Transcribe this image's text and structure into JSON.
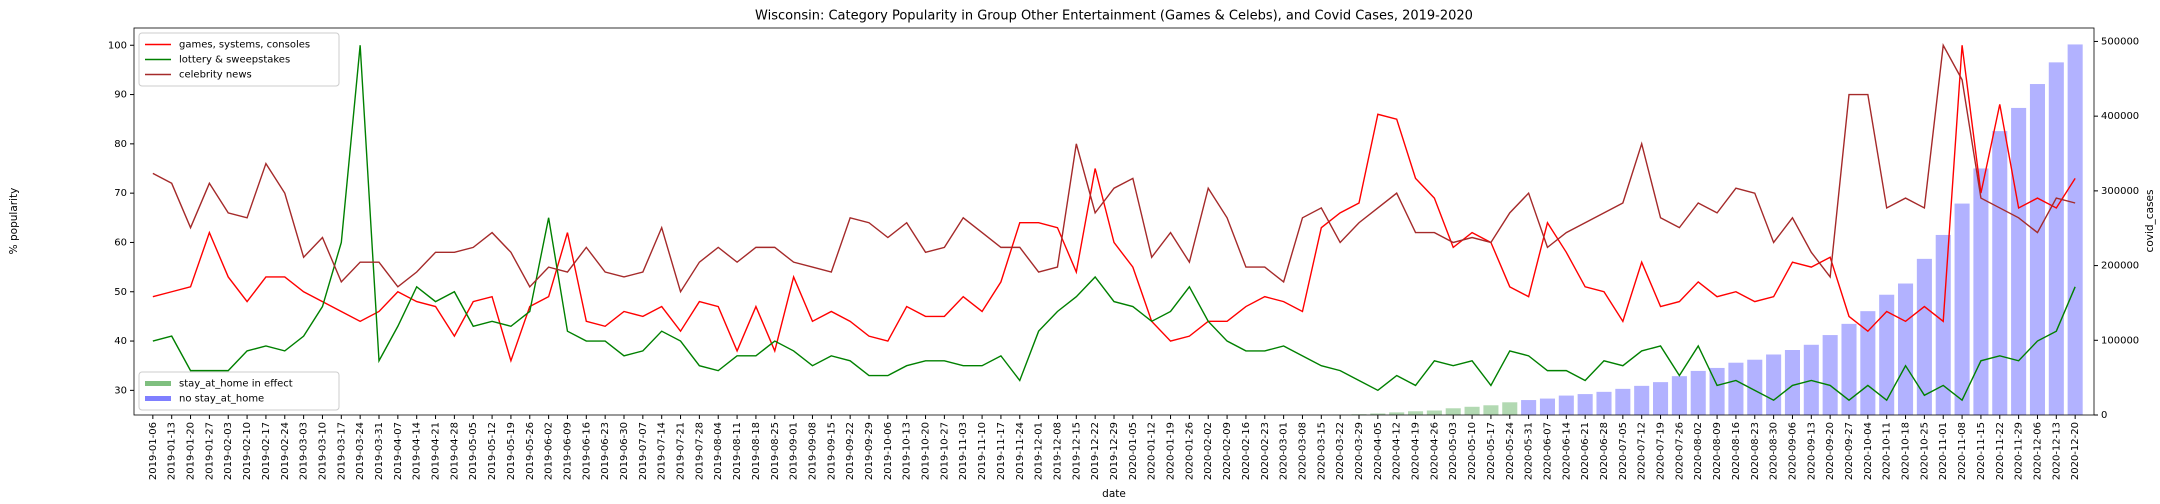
{
  "chart_data": {
    "type": "line",
    "title": "Wisconsin: Category Popularity in Group Other Entertainment (Games & Celebs), and Covid Cases, 2019-2020",
    "x_label": "date",
    "y_label": "% popularity",
    "y2_label": "covid_cases",
    "categories": [
      "2019-01-06",
      "2019-01-13",
      "2019-01-20",
      "2019-01-27",
      "2019-02-03",
      "2019-02-10",
      "2019-02-17",
      "2019-02-24",
      "2019-03-03",
      "2019-03-10",
      "2019-03-17",
      "2019-03-24",
      "2019-03-31",
      "2019-04-07",
      "2019-04-14",
      "2019-04-21",
      "2019-04-28",
      "2019-05-05",
      "2019-05-12",
      "2019-05-19",
      "2019-05-26",
      "2019-06-02",
      "2019-06-09",
      "2019-06-16",
      "2019-06-23",
      "2019-06-30",
      "2019-07-07",
      "2019-07-14",
      "2019-07-21",
      "2019-07-28",
      "2019-08-04",
      "2019-08-11",
      "2019-08-18",
      "2019-08-25",
      "2019-09-01",
      "2019-09-08",
      "2019-09-15",
      "2019-09-22",
      "2019-09-29",
      "2019-10-06",
      "2019-10-13",
      "2019-10-20",
      "2019-10-27",
      "2019-11-03",
      "2019-11-10",
      "2019-11-17",
      "2019-11-24",
      "2019-12-01",
      "2019-12-08",
      "2019-12-15",
      "2019-12-22",
      "2019-12-29",
      "2020-01-05",
      "2020-01-12",
      "2020-01-19",
      "2020-01-26",
      "2020-02-02",
      "2020-02-09",
      "2020-02-16",
      "2020-02-23",
      "2020-03-01",
      "2020-03-08",
      "2020-03-15",
      "2020-03-22",
      "2020-03-29",
      "2020-04-05",
      "2020-04-12",
      "2020-04-19",
      "2020-04-26",
      "2020-05-03",
      "2020-05-10",
      "2020-05-17",
      "2020-05-24",
      "2020-05-31",
      "2020-06-07",
      "2020-06-14",
      "2020-06-21",
      "2020-06-28",
      "2020-07-05",
      "2020-07-12",
      "2020-07-19",
      "2020-07-26",
      "2020-08-02",
      "2020-08-09",
      "2020-08-16",
      "2020-08-23",
      "2020-08-30",
      "2020-09-06",
      "2020-09-13",
      "2020-09-20",
      "2020-09-27",
      "2020-10-04",
      "2020-10-11",
      "2020-10-18",
      "2020-10-25",
      "2020-11-01",
      "2020-11-08",
      "2020-11-15",
      "2020-11-22",
      "2020-11-29",
      "2020-12-06",
      "2020-12-13",
      "2020-12-20"
    ],
    "series": [
      {
        "name": "games, systems, consoles",
        "color": "#ff0000",
        "values": [
          49,
          50,
          51,
          62,
          53,
          48,
          53,
          53,
          50,
          48,
          46,
          44,
          46,
          50,
          48,
          47,
          41,
          48,
          49,
          36,
          47,
          49,
          62,
          44,
          43,
          46,
          45,
          47,
          42,
          48,
          47,
          38,
          47,
          38,
          53,
          44,
          46,
          44,
          41,
          40,
          47,
          45,
          45,
          49,
          46,
          52,
          64,
          64,
          63,
          54,
          75,
          60,
          55,
          44,
          40,
          41,
          44,
          44,
          47,
          49,
          48,
          46,
          63,
          66,
          68,
          86,
          85,
          73,
          69,
          59,
          62,
          60,
          51,
          49,
          64,
          58,
          51,
          50,
          44,
          56,
          47,
          48,
          52,
          49,
          50,
          48,
          49,
          56,
          55,
          57,
          45,
          42,
          46,
          44,
          47,
          44,
          100,
          70,
          88,
          67,
          69,
          67,
          73
        ]
      },
      {
        "name": "lottery & sweepstakes",
        "color": "#008000",
        "values": [
          40,
          41,
          34,
          34,
          34,
          38,
          39,
          38,
          41,
          47,
          60,
          100,
          36,
          43,
          51,
          48,
          50,
          43,
          44,
          43,
          46,
          65,
          42,
          40,
          40,
          37,
          38,
          42,
          40,
          35,
          34,
          37,
          37,
          40,
          38,
          35,
          37,
          36,
          33,
          33,
          35,
          36,
          36,
          35,
          35,
          37,
          32,
          42,
          46,
          49,
          53,
          48,
          47,
          44,
          46,
          51,
          44,
          40,
          38,
          38,
          39,
          37,
          35,
          34,
          32,
          30,
          33,
          31,
          36,
          35,
          36,
          31,
          38,
          37,
          34,
          34,
          32,
          36,
          35,
          38,
          39,
          33,
          39,
          31,
          32,
          30,
          28,
          31,
          32,
          31,
          28,
          31,
          28,
          35,
          29,
          31,
          28,
          36,
          37,
          36,
          40,
          42,
          51
        ]
      },
      {
        "name": "celebrity news",
        "color": "#a52a2a",
        "values": [
          74,
          72,
          63,
          72,
          66,
          65,
          76,
          70,
          57,
          61,
          52,
          56,
          56,
          51,
          54,
          58,
          58,
          59,
          62,
          58,
          51,
          55,
          54,
          59,
          54,
          53,
          54,
          63,
          50,
          56,
          59,
          56,
          59,
          59,
          56,
          55,
          54,
          65,
          64,
          61,
          64,
          58,
          59,
          65,
          62,
          59,
          59,
          54,
          55,
          80,
          66,
          71,
          73,
          57,
          62,
          56,
          71,
          65,
          55,
          55,
          52,
          65,
          67,
          60,
          64,
          67,
          70,
          62,
          62,
          60,
          61,
          60,
          66,
          70,
          59,
          62,
          64,
          66,
          68,
          80,
          65,
          63,
          68,
          66,
          71,
          70,
          60,
          65,
          58,
          53,
          90,
          90,
          67,
          69,
          67,
          100,
          93,
          69,
          67,
          65,
          62,
          69,
          68
        ]
      },
      {
        "name": "stay_at_home in effect",
        "type": "bar",
        "axis": "y2",
        "color": "#008000",
        "values": [
          null,
          null,
          null,
          null,
          null,
          null,
          null,
          null,
          null,
          null,
          null,
          null,
          null,
          null,
          null,
          null,
          null,
          null,
          null,
          null,
          null,
          null,
          null,
          null,
          null,
          null,
          null,
          null,
          null,
          null,
          null,
          null,
          null,
          null,
          null,
          null,
          null,
          null,
          null,
          null,
          null,
          null,
          null,
          null,
          null,
          null,
          null,
          null,
          null,
          null,
          null,
          null,
          null,
          null,
          null,
          null,
          null,
          null,
          null,
          null,
          null,
          null,
          null,
          300,
          1000,
          2000,
          3500,
          5000,
          6000,
          9000,
          11000,
          13000,
          17000,
          null,
          null,
          null,
          null,
          null,
          null,
          null,
          null,
          null,
          null,
          null,
          null,
          null,
          null,
          null,
          null,
          null,
          null,
          null,
          null,
          null,
          null,
          null,
          null,
          null,
          null,
          null,
          null,
          null,
          null
        ]
      },
      {
        "name": "no stay_at_home",
        "type": "bar",
        "axis": "y2",
        "color": "#0000ff",
        "values": [
          null,
          null,
          null,
          null,
          null,
          null,
          null,
          null,
          null,
          null,
          null,
          null,
          null,
          null,
          null,
          null,
          null,
          null,
          null,
          null,
          null,
          null,
          null,
          null,
          null,
          null,
          null,
          null,
          null,
          null,
          null,
          null,
          null,
          null,
          null,
          null,
          null,
          null,
          null,
          null,
          null,
          null,
          null,
          null,
          null,
          null,
          null,
          null,
          null,
          null,
          null,
          null,
          null,
          null,
          null,
          null,
          null,
          null,
          null,
          null,
          null,
          null,
          null,
          null,
          null,
          null,
          null,
          null,
          null,
          null,
          null,
          null,
          null,
          20000,
          22000,
          26000,
          28000,
          31000,
          35000,
          39000,
          44000,
          52000,
          59000,
          63000,
          70000,
          74000,
          81000,
          87000,
          94000,
          107000,
          122000,
          139000,
          161000,
          176000,
          209000,
          241000,
          283000,
          330000,
          380000,
          411000,
          443000,
          472000,
          496000
        ]
      }
    ],
    "ylim": [
      25,
      103.5
    ],
    "yticks": [
      30,
      40,
      50,
      60,
      70,
      80,
      90,
      100
    ],
    "y2lim": [
      0,
      518000
    ],
    "y2ticks": [
      0,
      100000,
      200000,
      300000,
      400000,
      500000
    ],
    "legend": "upper left",
    "bar_legend": "lower left"
  }
}
